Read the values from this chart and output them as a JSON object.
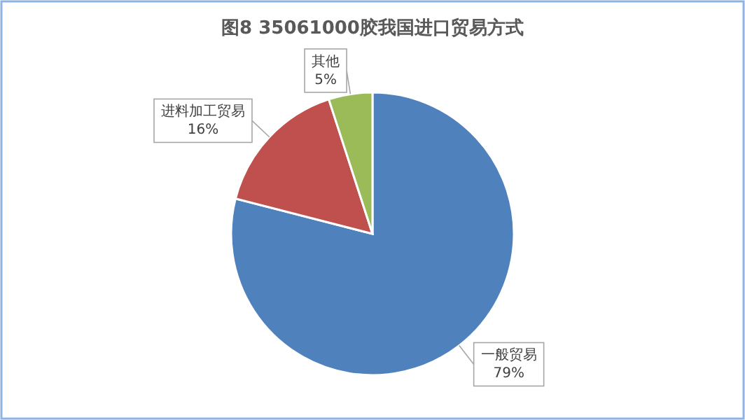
{
  "chart_data": {
    "type": "pie",
    "title": "图8  35061000胶我国进口贸易方式",
    "categories": [
      "一般贸易",
      "进料加工贸易",
      "其他"
    ],
    "values": [
      79,
      16,
      5
    ],
    "colors": [
      "#4f81bd",
      "#c0504d",
      "#9bbb59"
    ],
    "value_labels": [
      "79%",
      "16%",
      "5%"
    ]
  }
}
